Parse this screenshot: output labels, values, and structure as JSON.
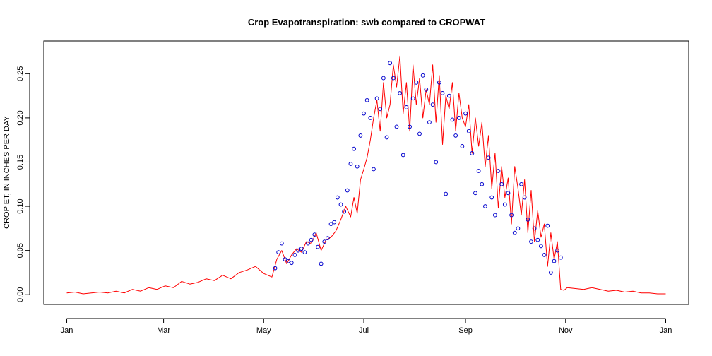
{
  "chart_data": {
    "type": "line",
    "title": "Crop Evapotranspiration: swb compared to CROPWAT",
    "xlabel": "",
    "ylabel": "CROP ET, IN INCHES PER DAY",
    "x_ticks": [
      "Jan",
      "Mar",
      "May",
      "Jul",
      "Sep",
      "Nov",
      "Jan"
    ],
    "x_tick_days": [
      0,
      59,
      120,
      181,
      243,
      304,
      365
    ],
    "xlim": [
      -14,
      379
    ],
    "y_ticks": [
      "0.00",
      "0.05",
      "0.10",
      "0.15",
      "0.20",
      "0.25"
    ],
    "ylim": [
      -0.011,
      0.287
    ],
    "grid": false,
    "series": [
      {
        "style": "line",
        "color": "#ff0000",
        "x": [
          0,
          5,
          10,
          15,
          20,
          25,
          30,
          35,
          40,
          45,
          50,
          55,
          60,
          65,
          70,
          75,
          80,
          85,
          90,
          95,
          100,
          105,
          110,
          115,
          120,
          125,
          128,
          131,
          134,
          137,
          140,
          143,
          146,
          149,
          152,
          155,
          158,
          161,
          164,
          167,
          170,
          173,
          175,
          177,
          179,
          181,
          183,
          185,
          187,
          189,
          191,
          193,
          195,
          197,
          199,
          201,
          203,
          205,
          207,
          209,
          211,
          213,
          215,
          217,
          219,
          221,
          223,
          225,
          227,
          229,
          231,
          233,
          235,
          237,
          239,
          241,
          243,
          245,
          247,
          249,
          251,
          253,
          255,
          257,
          259,
          261,
          263,
          265,
          267,
          269,
          271,
          273,
          275,
          277,
          279,
          281,
          283,
          285,
          287,
          289,
          291,
          293,
          295,
          297,
          299,
          301,
          303,
          305,
          310,
          315,
          320,
          325,
          330,
          335,
          340,
          345,
          350,
          355,
          360,
          365
        ],
        "y": [
          0.002,
          0.003,
          0.001,
          0.002,
          0.003,
          0.002,
          0.004,
          0.002,
          0.006,
          0.004,
          0.008,
          0.006,
          0.01,
          0.008,
          0.015,
          0.012,
          0.014,
          0.018,
          0.016,
          0.022,
          0.018,
          0.025,
          0.028,
          0.032,
          0.024,
          0.02,
          0.04,
          0.05,
          0.035,
          0.045,
          0.052,
          0.048,
          0.06,
          0.058,
          0.07,
          0.05,
          0.062,
          0.065,
          0.072,
          0.085,
          0.1,
          0.088,
          0.11,
          0.092,
          0.13,
          0.142,
          0.155,
          0.175,
          0.2,
          0.22,
          0.185,
          0.24,
          0.2,
          0.215,
          0.26,
          0.235,
          0.27,
          0.205,
          0.24,
          0.185,
          0.26,
          0.215,
          0.245,
          0.2,
          0.232,
          0.215,
          0.26,
          0.195,
          0.248,
          0.17,
          0.225,
          0.21,
          0.24,
          0.185,
          0.228,
          0.2,
          0.19,
          0.215,
          0.16,
          0.2,
          0.168,
          0.195,
          0.145,
          0.18,
          0.12,
          0.16,
          0.098,
          0.145,
          0.11,
          0.132,
          0.08,
          0.145,
          0.12,
          0.09,
          0.13,
          0.07,
          0.118,
          0.06,
          0.095,
          0.065,
          0.08,
          0.032,
          0.07,
          0.04,
          0.06,
          0.006,
          0.005,
          0.008,
          0.007,
          0.006,
          0.008,
          0.006,
          0.004,
          0.005,
          0.003,
          0.004,
          0.002,
          0.002,
          0.001,
          0.001
        ]
      },
      {
        "style": "points",
        "color": "#0000cc",
        "x": [
          127,
          129,
          131,
          133,
          135,
          137,
          139,
          141,
          143,
          145,
          147,
          149,
          151,
          153,
          155,
          157,
          159,
          161,
          163,
          165,
          167,
          169,
          171,
          173,
          175,
          177,
          179,
          181,
          183,
          185,
          187,
          189,
          191,
          193,
          195,
          197,
          199,
          201,
          203,
          205,
          207,
          209,
          211,
          213,
          215,
          217,
          219,
          221,
          223,
          225,
          227,
          229,
          231,
          233,
          235,
          237,
          239,
          241,
          243,
          245,
          247,
          249,
          251,
          253,
          255,
          257,
          259,
          261,
          263,
          265,
          267,
          269,
          271,
          273,
          275,
          277,
          279,
          281,
          283,
          285,
          287,
          289,
          291,
          293,
          295,
          297,
          299,
          301
        ],
        "y": [
          0.03,
          0.048,
          0.058,
          0.04,
          0.038,
          0.036,
          0.045,
          0.05,
          0.052,
          0.048,
          0.058,
          0.062,
          0.068,
          0.054,
          0.035,
          0.06,
          0.064,
          0.08,
          0.082,
          0.11,
          0.102,
          0.094,
          0.118,
          0.148,
          0.165,
          0.145,
          0.18,
          0.205,
          0.22,
          0.2,
          0.142,
          0.222,
          0.21,
          0.245,
          0.178,
          0.262,
          0.245,
          0.19,
          0.228,
          0.158,
          0.212,
          0.19,
          0.222,
          0.24,
          0.182,
          0.248,
          0.232,
          0.195,
          0.215,
          0.15,
          0.24,
          0.228,
          0.114,
          0.225,
          0.198,
          0.18,
          0.2,
          0.168,
          0.205,
          0.185,
          0.16,
          0.115,
          0.14,
          0.125,
          0.1,
          0.155,
          0.11,
          0.09,
          0.14,
          0.125,
          0.102,
          0.115,
          0.09,
          0.07,
          0.075,
          0.125,
          0.11,
          0.085,
          0.06,
          0.075,
          0.062,
          0.055,
          0.045,
          0.078,
          0.025,
          0.038,
          0.05,
          0.042
        ]
      }
    ]
  }
}
